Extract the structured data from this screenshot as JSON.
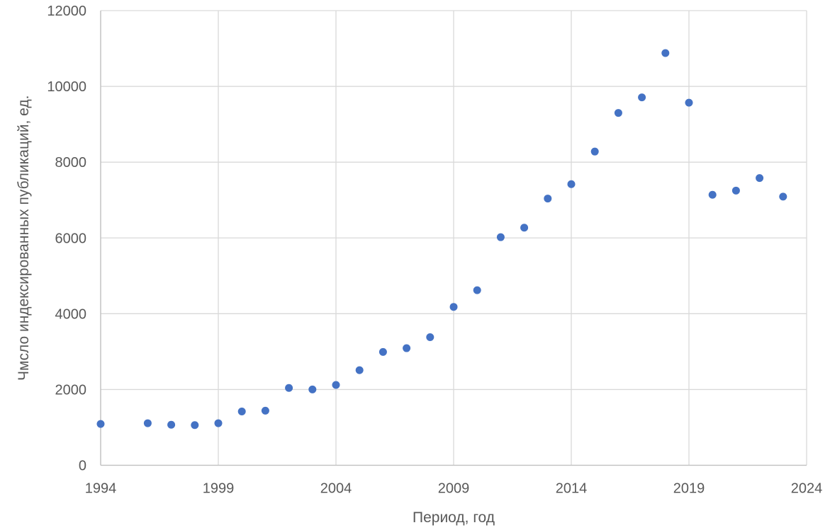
{
  "chart_data": {
    "type": "scatter",
    "title": "",
    "xlabel": "Период, год",
    "ylabel": "Чмсло индексированных публикаций, ед.",
    "xlim": [
      1994,
      2024
    ],
    "ylim": [
      0,
      12000
    ],
    "x_ticks": [
      1994,
      1999,
      2004,
      2009,
      2014,
      2019,
      2024
    ],
    "y_ticks": [
      0,
      2000,
      4000,
      6000,
      8000,
      10000,
      12000
    ],
    "grid": true,
    "legend": "none",
    "marker": {
      "shape": "circle",
      "color": "#4472C4",
      "radius": 5.5
    },
    "grid_color": "#D9D9D9",
    "axis_color": "#BFBFBF",
    "tick_label_color": "#595959",
    "series": [
      {
        "x": [
          1994,
          1996,
          1997,
          1998,
          1999,
          2000,
          2001,
          2002,
          2003,
          2004,
          2005,
          2006,
          2007,
          2008,
          2009,
          2010,
          2011,
          2012,
          2013,
          2014,
          2015,
          2016,
          2017,
          2018,
          2019,
          2020,
          2021,
          2022,
          2023
        ],
        "y": [
          1090,
          1110,
          1070,
          1060,
          1110,
          1420,
          1440,
          2040,
          2000,
          2120,
          2510,
          2990,
          3090,
          3380,
          4180,
          4620,
          6020,
          6270,
          7040,
          7420,
          8280,
          9300,
          9710,
          10880,
          9570,
          7140,
          7250,
          7580,
          7090
        ]
      }
    ]
  }
}
